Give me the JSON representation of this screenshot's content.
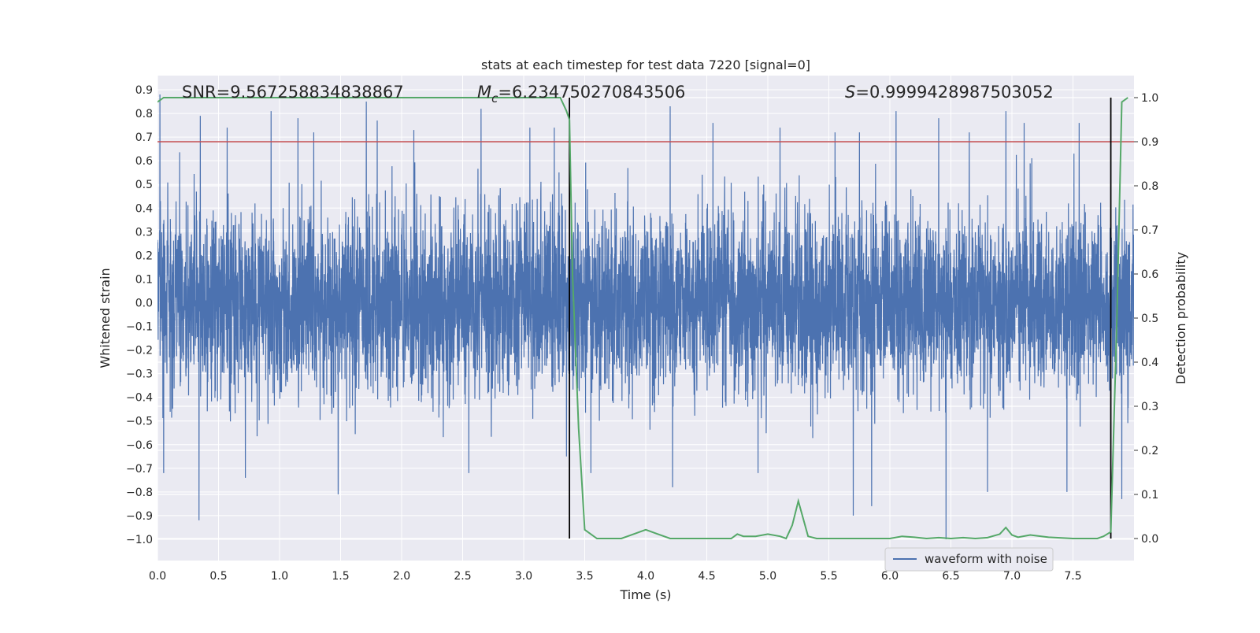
{
  "chart_data": {
    "type": "line",
    "title": "stats at each timestep for test data 7220 [signal=0]",
    "xlabel": "Time (s)",
    "ylabel": "Whitened strain",
    "y2label": "Detection probability",
    "xlim": [
      0.0,
      8.0
    ],
    "ylim": [
      -1.09,
      0.96
    ],
    "y2lim": [
      -0.05,
      1.05
    ],
    "xticks": [
      0.0,
      0.5,
      1.0,
      1.5,
      2.0,
      2.5,
      3.0,
      3.5,
      4.0,
      4.5,
      5.0,
      5.5,
      6.0,
      6.5,
      7.0,
      7.5
    ],
    "yticks": [
      0.9,
      0.8,
      0.7,
      0.6,
      0.5,
      0.4,
      0.3,
      0.2,
      0.1,
      0.0,
      -0.1,
      -0.2,
      -0.3,
      -0.4,
      -0.5,
      -0.6,
      -0.7,
      -0.8,
      -0.9,
      -1.0
    ],
    "y2ticks": [
      1.0,
      0.9,
      0.8,
      0.7,
      0.6,
      0.5,
      0.4,
      0.3,
      0.2,
      0.1,
      0.0
    ],
    "grid": true,
    "legend": {
      "position": "lower-right",
      "entries": [
        "waveform with noise"
      ]
    },
    "annotations": {
      "snr": "SNR=9.567258834838867",
      "mc_symbol": "M",
      "mc_sub": "c",
      "mc_value": "=6.234750270843506",
      "s_symbol": "S",
      "s_value": "=0.9999428987503052"
    },
    "threshold": {
      "axis": "right",
      "value": 0.9,
      "color": "#c44e52"
    },
    "vertical_lines": [
      3.375,
      7.81
    ],
    "series": [
      {
        "name": "waveform with noise",
        "axis": "left",
        "color": "#4c72b0",
        "description_envelope_typical": [
          -0.45,
          0.45
        ],
        "peaks": [
          [
            0.02,
            0.88
          ],
          [
            0.05,
            -0.72
          ],
          [
            0.35,
            0.79
          ],
          [
            0.34,
            -0.92
          ],
          [
            0.57,
            0.74
          ],
          [
            0.72,
            -0.74
          ],
          [
            0.93,
            0.81
          ],
          [
            1.15,
            0.78
          ],
          [
            1.28,
            0.72
          ],
          [
            1.48,
            -0.81
          ],
          [
            1.71,
            0.85
          ],
          [
            1.8,
            0.77
          ],
          [
            2.1,
            0.73
          ],
          [
            2.55,
            -0.72
          ],
          [
            2.65,
            0.82
          ],
          [
            3.05,
            0.74
          ],
          [
            3.25,
            0.74
          ],
          [
            3.35,
            -0.65
          ],
          [
            3.55,
            -0.72
          ],
          [
            4.2,
            0.83
          ],
          [
            4.22,
            -0.78
          ],
          [
            4.55,
            0.76
          ],
          [
            4.92,
            -0.72
          ],
          [
            5.1,
            0.74
          ],
          [
            5.55,
            0.72
          ],
          [
            5.7,
            -0.9
          ],
          [
            5.75,
            0.72
          ],
          [
            5.85,
            -0.86
          ],
          [
            6.05,
            0.81
          ],
          [
            6.4,
            0.78
          ],
          [
            6.46,
            -1.0
          ],
          [
            6.65,
            0.72
          ],
          [
            6.8,
            -0.8
          ],
          [
            6.95,
            0.81
          ],
          [
            7.1,
            0.76
          ],
          [
            7.45,
            -0.8
          ],
          [
            7.55,
            0.76
          ],
          [
            7.9,
            -0.83
          ]
        ]
      },
      {
        "name": "",
        "axis": "right",
        "color": "#55a868",
        "x": [
          0.0,
          0.05,
          3.3,
          3.35,
          3.375,
          3.4,
          3.45,
          3.5,
          3.6,
          3.7,
          3.8,
          3.9,
          4.0,
          4.1,
          4.2,
          4.4,
          4.6,
          4.7,
          4.75,
          4.8,
          4.9,
          5.0,
          5.1,
          5.15,
          5.2,
          5.25,
          5.33,
          5.4,
          5.6,
          5.8,
          6.0,
          6.1,
          6.2,
          6.3,
          6.4,
          6.5,
          6.6,
          6.7,
          6.8,
          6.9,
          6.95,
          7.0,
          7.05,
          7.15,
          7.3,
          7.5,
          7.7,
          7.75,
          7.81,
          7.86,
          7.9,
          7.95
        ],
        "y": [
          0.99,
          1.0,
          1.0,
          0.97,
          0.95,
          0.6,
          0.25,
          0.02,
          0.0,
          0.0,
          0.0,
          0.01,
          0.02,
          0.01,
          0.0,
          0.0,
          0.0,
          0.0,
          0.01,
          0.005,
          0.005,
          0.01,
          0.005,
          0.0,
          0.03,
          0.085,
          0.005,
          0.0,
          0.0,
          0.0,
          0.0,
          0.005,
          0.003,
          0.0,
          0.002,
          0.0,
          0.002,
          0.0,
          0.002,
          0.01,
          0.025,
          0.008,
          0.003,
          0.008,
          0.003,
          0.0,
          0.0,
          0.005,
          0.015,
          0.5,
          0.99,
          1.0
        ]
      }
    ]
  }
}
